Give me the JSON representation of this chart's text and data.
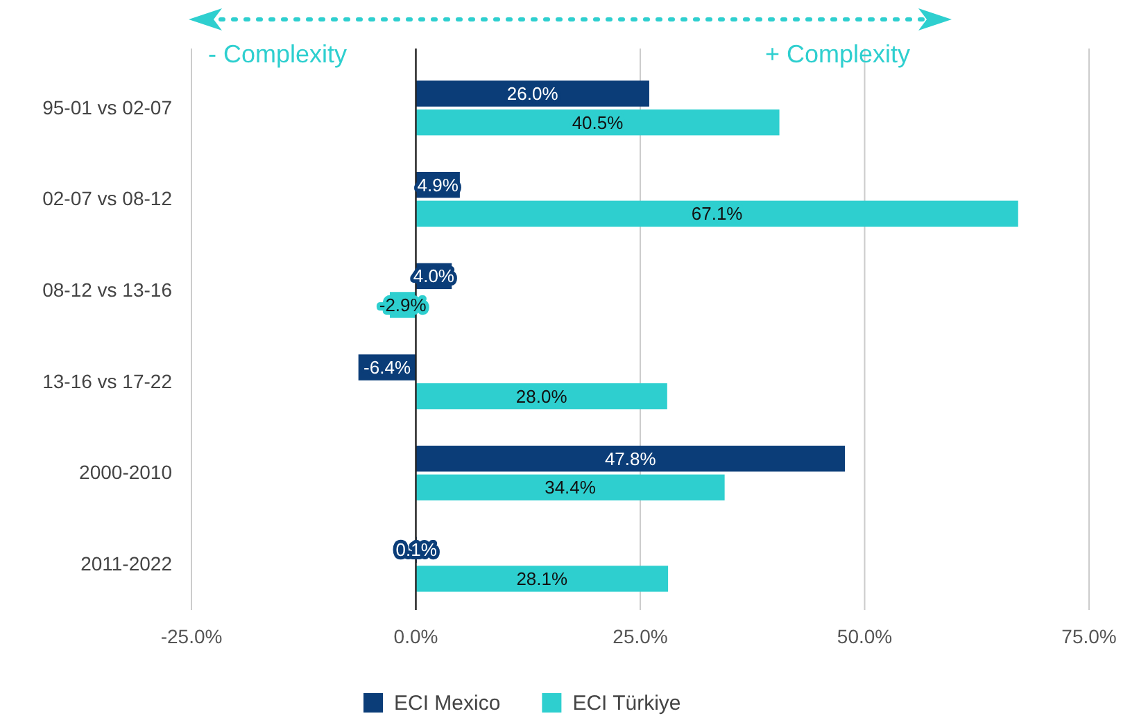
{
  "chart_data": {
    "type": "bar",
    "orientation": "horizontal",
    "categories": [
      "95-01 vs 02-07",
      "02-07 vs 08-12",
      "08-12 vs 13-16",
      "13-16 vs 17-22",
      "2000-2010",
      "2011-2022"
    ],
    "series": [
      {
        "name": "ECI Mexico",
        "color": "#0b3d78",
        "values": [
          26.0,
          4.9,
          4.0,
          -6.4,
          47.8,
          0.1
        ],
        "value_labels": [
          "26.0%",
          "4.9%",
          "4.0%",
          "-6.4%",
          "47.8%",
          "0.1%"
        ]
      },
      {
        "name": "ECI Türkiye",
        "color": "#2ecfcf",
        "values": [
          40.5,
          67.1,
          -2.9,
          28.0,
          34.4,
          28.1
        ],
        "value_labels": [
          "40.5%",
          "67.1%",
          "-2.9%",
          "28.0%",
          "34.4%",
          "28.1%"
        ]
      }
    ],
    "xlim": [
      -25,
      75
    ],
    "xticks": [
      {
        "value": -25,
        "label": "-25.0%"
      },
      {
        "value": 0,
        "label": "0.0%"
      },
      {
        "value": 25,
        "label": "25.0%"
      },
      {
        "value": 50,
        "label": "50.0%"
      },
      {
        "value": 75,
        "label": "75.0%"
      }
    ],
    "grid": "x",
    "legend": "bottom",
    "annotations": [
      "- Complexity",
      "+ Complexity"
    ]
  }
}
